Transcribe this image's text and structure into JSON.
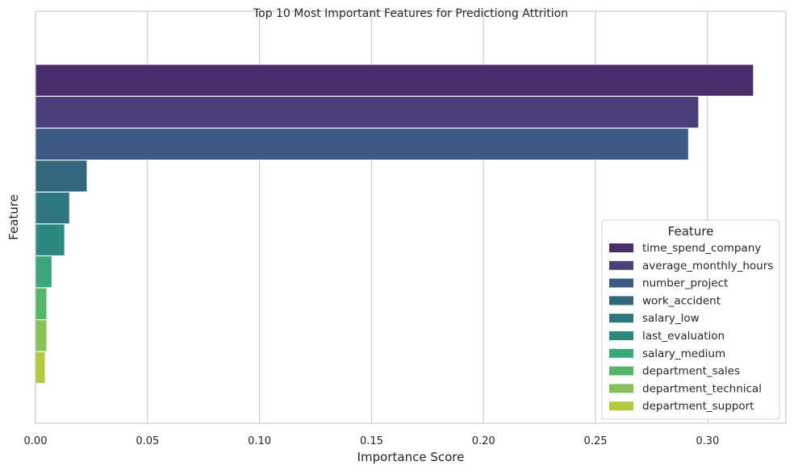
{
  "chart_data": {
    "type": "bar",
    "orientation": "horizontal",
    "title": "Top 10 Most Important Features for Predictiong Attrition",
    "xlabel": "Importance Score",
    "ylabel": "Feature",
    "xlim": [
      0,
      0.335
    ],
    "xticks": [
      0.0,
      0.05,
      0.1,
      0.15,
      0.2,
      0.25,
      0.3
    ],
    "xtick_labels": [
      "0.00",
      "0.05",
      "0.10",
      "0.15",
      "0.20",
      "0.25",
      "0.30"
    ],
    "grid": "vertical",
    "legend": {
      "title": "Feature",
      "placement": "lower-right"
    },
    "categories": [
      "time_spend_company",
      "average_monthly_hours",
      "number_project",
      "work_accident",
      "salary_low",
      "last_evaluation",
      "salary_medium",
      "department_sales",
      "department_technical",
      "department_support"
    ],
    "values": [
      0.3205,
      0.296,
      0.2915,
      0.023,
      0.0152,
      0.013,
      0.0073,
      0.005,
      0.005,
      0.0043
    ],
    "colors": [
      "#482c6b",
      "#4b3f7a",
      "#3d5a85",
      "#33687c",
      "#2e7781",
      "#2a8a7e",
      "#3aa67a",
      "#55b569",
      "#87c256",
      "#b5c93c"
    ]
  }
}
